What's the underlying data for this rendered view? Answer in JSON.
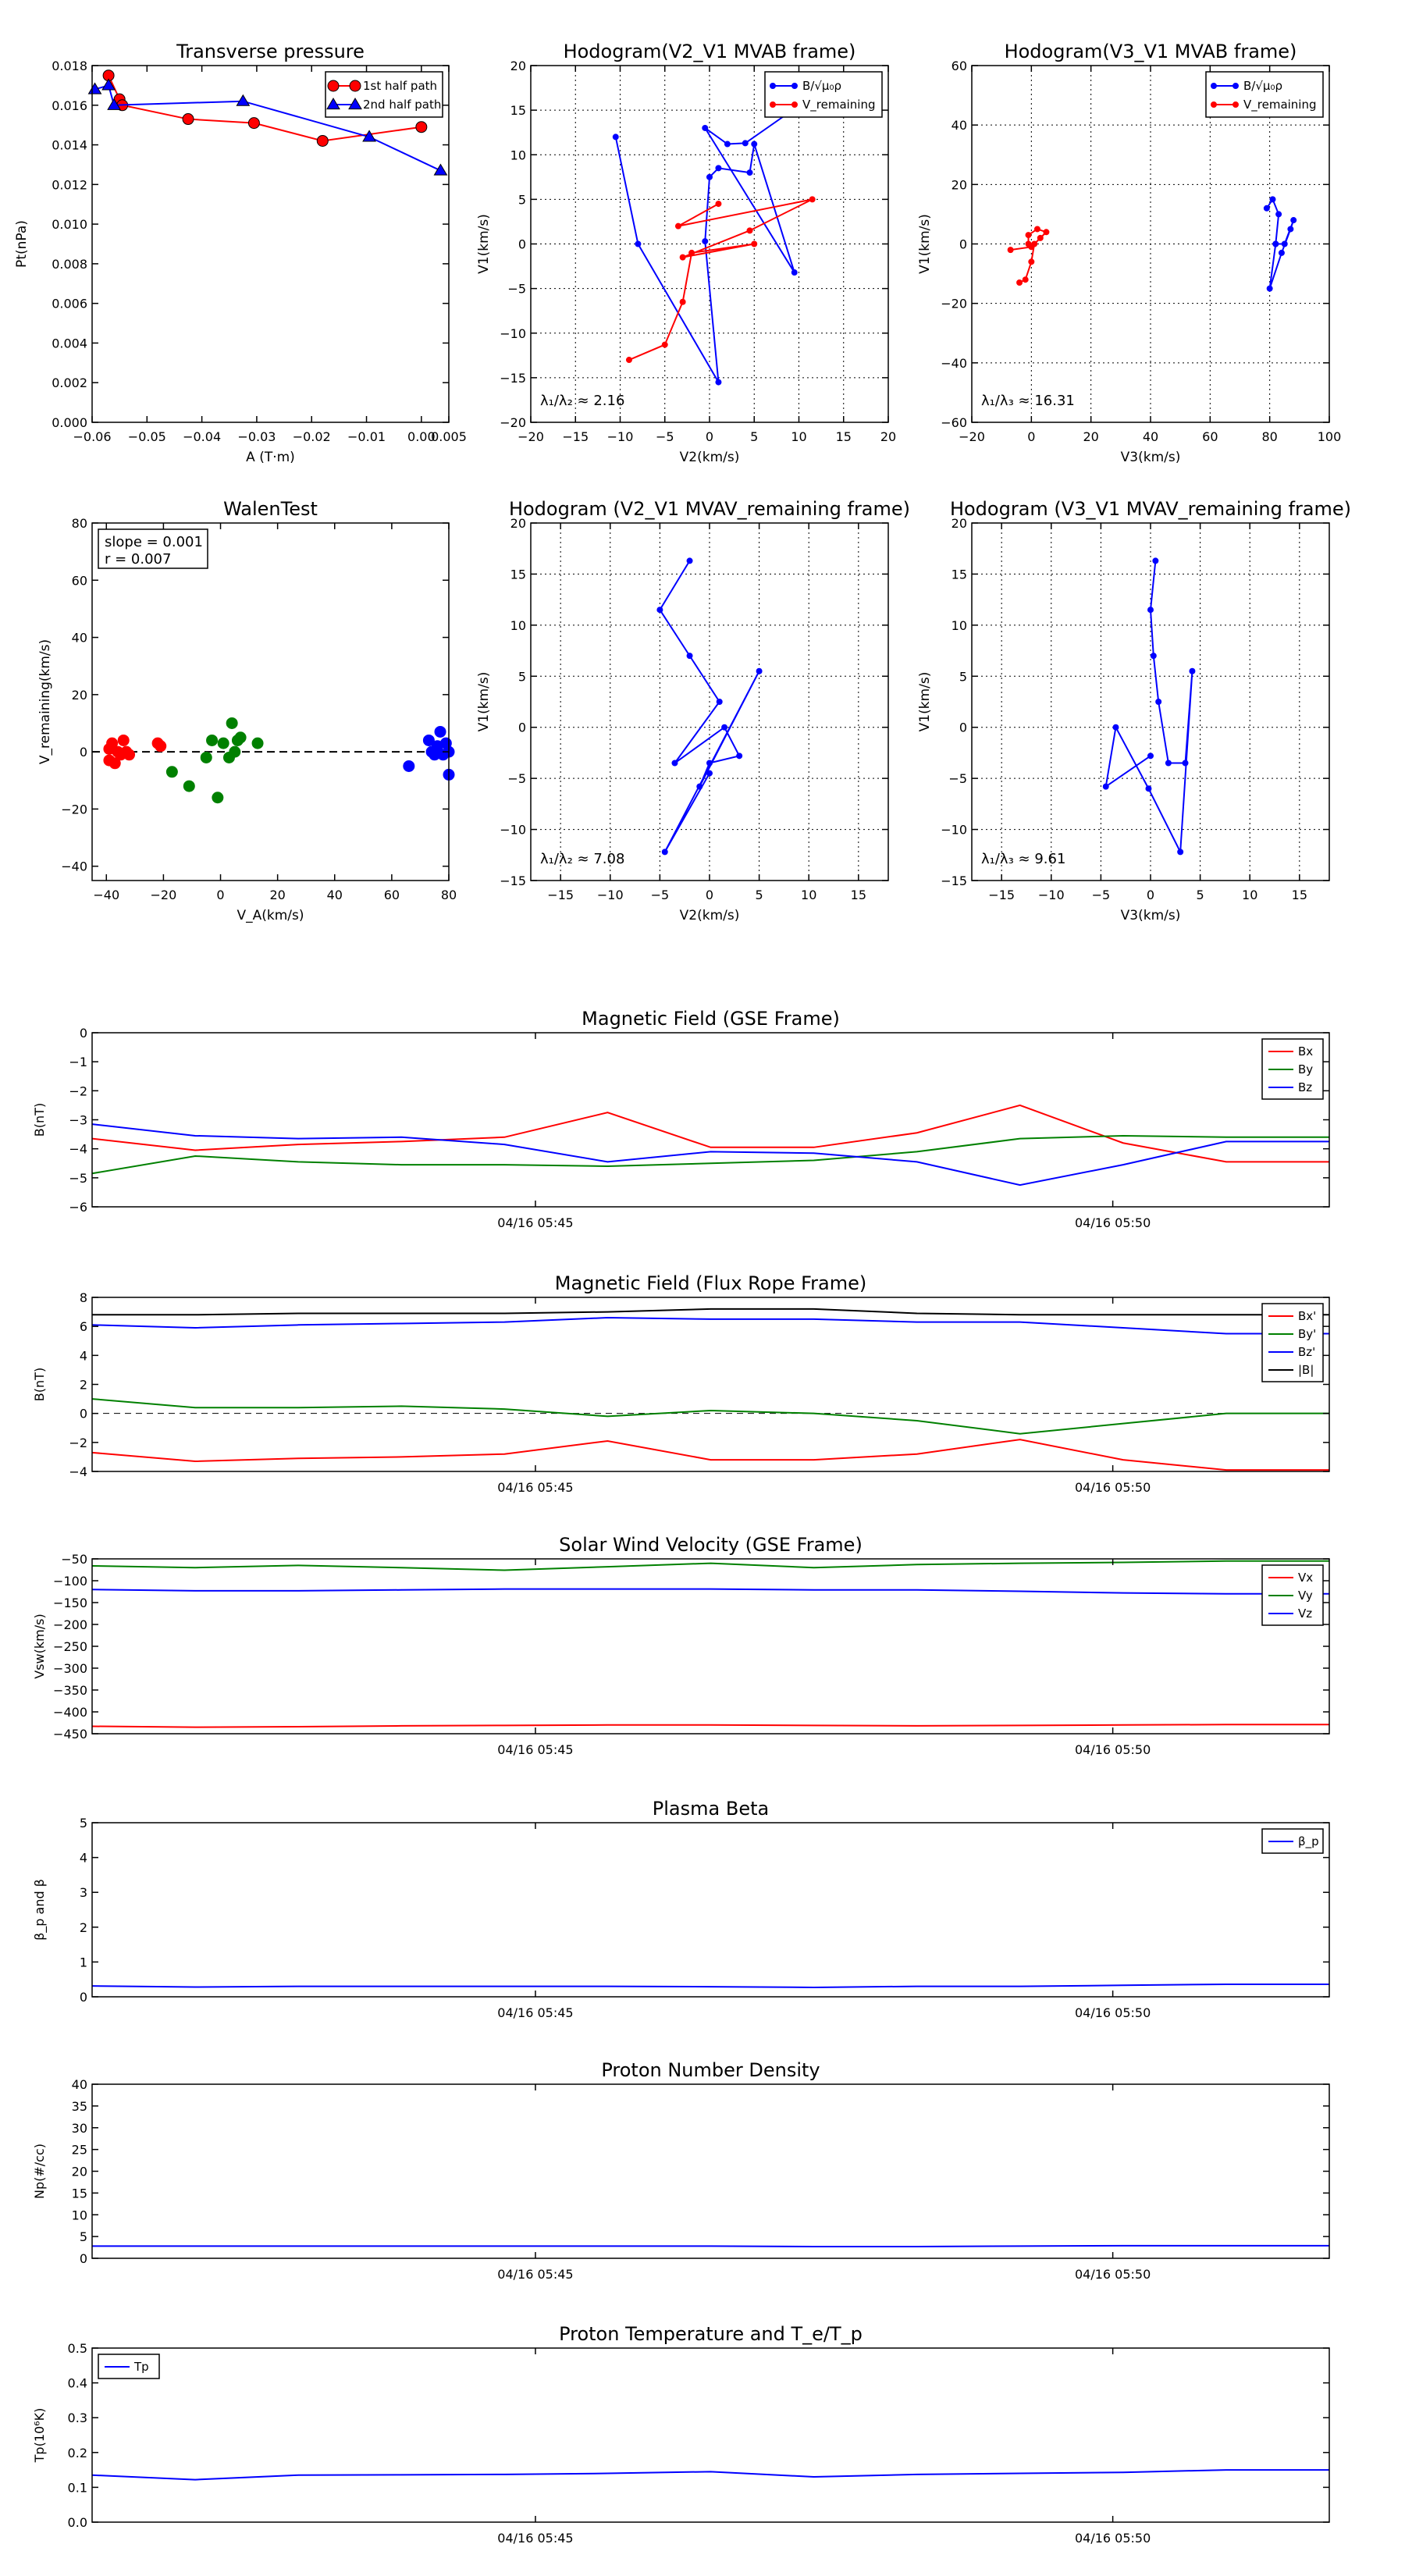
{
  "chart_data": [
    {
      "id": "tp",
      "type": "line",
      "title": "Transverse pressure",
      "xlabel": "A (T·m)",
      "ylabel": "Pt(nPa)",
      "xlim": [
        -0.06,
        0.005
      ],
      "ylim": [
        0,
        0.018
      ],
      "xticks": [
        -0.06,
        -0.05,
        -0.04,
        -0.03,
        -0.02,
        -0.01,
        0.0,
        0.005
      ],
      "xticklabels": [
        "−0.06",
        "−0.05",
        "−0.04",
        "−0.03",
        "−0.02",
        "−0.01",
        "0.00",
        "0.005"
      ],
      "yticks": [
        0,
        0.002,
        0.004,
        0.006,
        0.008,
        0.01,
        0.012,
        0.014,
        0.016,
        0.018
      ],
      "yticklabels": [
        "0.000",
        "0.002",
        "0.004",
        "0.006",
        "0.008",
        "0.010",
        "0.012",
        "0.014",
        "0.016",
        "0.018"
      ],
      "grid": false,
      "legend": "top-right",
      "series": [
        {
          "name": "1st half path",
          "color": "#ff0000",
          "marker": "circle",
          "x": [
            -0.057,
            -0.055,
            -0.0545,
            -0.0425,
            -0.0305,
            -0.018,
            0.0
          ],
          "y": [
            0.0175,
            0.0163,
            0.016,
            0.0153,
            0.0151,
            0.0142,
            0.0149
          ]
        },
        {
          "name": "2nd half path",
          "color": "#0000ff",
          "marker": "triangle",
          "x": [
            -0.0595,
            -0.057,
            -0.056,
            -0.0325,
            -0.0095,
            0.0035
          ],
          "y": [
            0.0168,
            0.017,
            0.016,
            0.0162,
            0.0144,
            0.0127
          ]
        }
      ]
    },
    {
      "id": "hodo1",
      "type": "line",
      "title": "Hodogram(V2_V1 MVAB frame)",
      "xlabel": "V2(km/s)",
      "ylabel": "V1(km/s)",
      "xlim": [
        -20,
        20
      ],
      "ylim": [
        -20,
        20
      ],
      "xticks": [
        -20,
        -15,
        -10,
        -5,
        0,
        5,
        10,
        15,
        20
      ],
      "yticks": [
        -20,
        -15,
        -10,
        -5,
        0,
        5,
        10,
        15,
        20
      ],
      "grid": true,
      "legend": "top-right",
      "annotation": "λ₁/λ₂ ≈ 2.16",
      "series": [
        {
          "name": "B/√μ₀ρ",
          "color": "#0000ff",
          "x": [
            -10.5,
            -8,
            1,
            -0.5,
            0,
            1,
            4.5,
            5,
            9.5,
            -0.5,
            2,
            4,
            10
          ],
          "y": [
            12,
            0,
            -15.5,
            0.3,
            7.5,
            8.5,
            8,
            11.2,
            -3.2,
            13,
            11.2,
            11.3,
            15.5
          ]
        },
        {
          "name": "V_remaining",
          "color": "#ff0000",
          "x": [
            -9,
            -5,
            -3,
            -2,
            5,
            -3,
            4.5,
            11.5,
            -3.5,
            1
          ],
          "y": [
            -13,
            -11.3,
            -6.5,
            -1,
            0,
            -1.5,
            1.5,
            5,
            2,
            4.5
          ]
        }
      ]
    },
    {
      "id": "hodo2",
      "type": "line",
      "title": "Hodogram(V3_V1 MVAB frame)",
      "xlabel": "V3(km/s)",
      "ylabel": "V1(km/s)",
      "xlim": [
        -20,
        100
      ],
      "ylim": [
        -60,
        60
      ],
      "xticks": [
        -20,
        0,
        20,
        40,
        60,
        80,
        100
      ],
      "yticks": [
        -60,
        -40,
        -20,
        0,
        20,
        40,
        60
      ],
      "grid": true,
      "legend": "top-right",
      "annotation": "λ₁/λ₃ ≈ 16.31",
      "series": [
        {
          "name": "B/√μ₀ρ",
          "color": "#0000ff",
          "x": [
            79,
            81,
            83,
            82,
            80,
            84,
            87,
            88,
            85,
            82
          ],
          "y": [
            12,
            15,
            10,
            0,
            -15,
            -3,
            5,
            8,
            0,
            0
          ]
        },
        {
          "name": "V_remaining",
          "color": "#ff0000",
          "x": [
            -4,
            -2,
            0,
            1,
            3,
            5,
            2,
            -1,
            -1,
            0,
            -7
          ],
          "y": [
            -13,
            -12,
            -6,
            0,
            2,
            4,
            5,
            3,
            0,
            -1,
            -2
          ]
        }
      ]
    },
    {
      "id": "walen",
      "type": "scatter",
      "title": "WalenTest",
      "xlabel": "V_A(km/s)",
      "ylabel": "V_remaining(km/s)",
      "xlim": [
        -45,
        80
      ],
      "ylim": [
        -45,
        80
      ],
      "xticks": [
        -40,
        -20,
        0,
        20,
        40,
        60,
        80
      ],
      "yticks": [
        -40,
        -20,
        0,
        20,
        40,
        60,
        80
      ],
      "grid": false,
      "annotation_lines": [
        "slope = 0.001",
        "r = 0.007"
      ],
      "series": [
        {
          "color": "#ff0000",
          "x": [
            -39,
            -38,
            -36,
            -35,
            -34,
            -33,
            -32,
            -22,
            -21,
            -37,
            -39
          ],
          "y": [
            1,
            3,
            0,
            -1,
            4,
            0,
            -1,
            3,
            2,
            -4,
            -3
          ]
        },
        {
          "color": "#008000",
          "x": [
            -17,
            -11,
            -5,
            -3,
            -1,
            1,
            3,
            4,
            5,
            6,
            7,
            13
          ],
          "y": [
            -7,
            -12,
            -2,
            4,
            -16,
            3,
            -2,
            10,
            0,
            4,
            5,
            3
          ]
        },
        {
          "color": "#0000ff",
          "x": [
            66,
            73,
            74,
            75,
            76,
            77,
            78,
            79,
            80,
            80,
            76
          ],
          "y": [
            -5,
            4,
            0,
            -1,
            2,
            7,
            -1,
            3,
            -8,
            0,
            0
          ]
        }
      ],
      "refline": {
        "x": [
          -45,
          80
        ],
        "y": [
          0,
          0
        ]
      }
    },
    {
      "id": "hodo3",
      "type": "line",
      "title": "Hodogram (V2_V1 MVAV_remaining frame)",
      "xlabel": "V2(km/s)",
      "ylabel": "V1(km/s)",
      "xlim": [
        -18,
        18
      ],
      "ylim": [
        -15,
        20
      ],
      "xticks": [
        -15,
        -10,
        -5,
        0,
        5,
        10,
        15
      ],
      "yticks": [
        -15,
        -10,
        -5,
        0,
        5,
        10,
        15,
        20
      ],
      "grid": true,
      "annotation": "λ₁/λ₂ ≈ 7.08",
      "series": [
        {
          "color": "#0000ff",
          "x": [
            -2,
            -5,
            -2,
            1,
            -3.5,
            1.5,
            3,
            0,
            -1,
            5,
            -4.5,
            0
          ],
          "y": [
            16.3,
            11.5,
            7,
            2.5,
            -3.5,
            0,
            -2.8,
            -3.5,
            -5.8,
            5.5,
            -12.2,
            -4.5
          ]
        }
      ]
    },
    {
      "id": "hodo4",
      "type": "line",
      "title": "Hodogram (V3_V1 MVAV_remaining frame)",
      "xlabel": "V3(km/s)",
      "ylabel": "V1(km/s)",
      "xlim": [
        -18,
        18
      ],
      "ylim": [
        -15,
        20
      ],
      "xticks": [
        -15,
        -10,
        -5,
        0,
        5,
        10,
        15
      ],
      "yticks": [
        -15,
        -10,
        -5,
        0,
        5,
        10,
        15,
        20
      ],
      "grid": true,
      "annotation": "λ₁/λ₃ ≈ 9.61",
      "series": [
        {
          "color": "#0000ff",
          "x": [
            0.5,
            0,
            0.3,
            0.8,
            1.8,
            3.5,
            4.2,
            3,
            -0.2,
            -3.5,
            -4.5,
            0
          ],
          "y": [
            16.3,
            11.5,
            7,
            2.5,
            -3.5,
            -3.5,
            5.5,
            -12.2,
            -6,
            0,
            -5.8,
            -2.8
          ]
        }
      ]
    },
    {
      "id": "bgse",
      "type": "line",
      "title": "Magnetic Field (GSE Frame)",
      "ylabel": "B(nT)",
      "x": [
        0,
        1,
        2,
        3,
        4,
        5,
        6,
        7,
        8,
        9,
        10,
        11,
        12
      ],
      "xlim": [
        0,
        12
      ],
      "ylim": [
        -6,
        0
      ],
      "yticks": [
        -6,
        -5,
        -4,
        -3,
        -2,
        -1,
        0
      ],
      "time_ticks": [
        {
          "x": 4.3,
          "label": "04/16 05:45"
        },
        {
          "x": 9.9,
          "label": "04/16 05:50"
        }
      ],
      "legend": "top-right",
      "series": [
        {
          "name": "Bx",
          "color": "#ff0000",
          "values": [
            -3.65,
            -4.05,
            -3.85,
            -3.75,
            -3.6,
            -2.75,
            -3.95,
            -3.95,
            -3.45,
            -2.5,
            -3.8,
            -4.45,
            -4.45
          ]
        },
        {
          "name": "By",
          "color": "#008000",
          "values": [
            -4.85,
            -4.25,
            -4.45,
            -4.55,
            -4.55,
            -4.6,
            -4.5,
            -4.4,
            -4.1,
            -3.65,
            -3.55,
            -3.6,
            -3.6
          ]
        },
        {
          "name": "Bz",
          "color": "#0000ff",
          "values": [
            -3.15,
            -3.55,
            -3.65,
            -3.6,
            -3.85,
            -4.45,
            -4.1,
            -4.15,
            -4.45,
            -5.25,
            -4.55,
            -3.75,
            -3.75
          ]
        }
      ]
    },
    {
      "id": "bfr",
      "type": "line",
      "title": "Magnetic Field (Flux Rope Frame)",
      "ylabel": "B(nT)",
      "x": [
        0,
        1,
        2,
        3,
        4,
        5,
        6,
        7,
        8,
        9,
        10,
        11,
        12
      ],
      "xlim": [
        0,
        12
      ],
      "ylim": [
        -4,
        8
      ],
      "yticks": [
        -4,
        -2,
        0,
        2,
        4,
        6,
        8
      ],
      "time_ticks": [
        {
          "x": 4.3,
          "label": "04/16 05:45"
        },
        {
          "x": 9.9,
          "label": "04/16 05:50"
        }
      ],
      "legend": "top-right",
      "zero_line": true,
      "series": [
        {
          "name": "Bx'",
          "color": "#ff0000",
          "values": [
            -2.7,
            -3.3,
            -3.1,
            -3.0,
            -2.8,
            -1.9,
            -3.2,
            -3.2,
            -2.8,
            -1.8,
            -3.2,
            -3.9,
            -3.9
          ]
        },
        {
          "name": "By'",
          "color": "#008000",
          "values": [
            1.0,
            0.4,
            0.4,
            0.5,
            0.3,
            -0.2,
            0.2,
            0.0,
            -0.5,
            -1.4,
            -0.7,
            0.0,
            0.0
          ]
        },
        {
          "name": "Bz'",
          "color": "#0000ff",
          "values": [
            6.1,
            5.9,
            6.1,
            6.2,
            6.3,
            6.6,
            6.5,
            6.5,
            6.3,
            6.3,
            5.9,
            5.5,
            5.5
          ]
        },
        {
          "name": "|B|",
          "color": "#000000",
          "values": [
            6.8,
            6.8,
            6.9,
            6.9,
            6.9,
            7.0,
            7.2,
            7.2,
            6.9,
            6.8,
            6.8,
            6.8,
            6.8
          ]
        }
      ]
    },
    {
      "id": "vsw",
      "type": "line",
      "title": "Solar Wind Velocity (GSE Frame)",
      "ylabel": "Vsw(km/s)",
      "x": [
        0,
        1,
        2,
        3,
        4,
        5,
        6,
        7,
        8,
        9,
        10,
        11,
        12
      ],
      "xlim": [
        0,
        12
      ],
      "ylim": [
        -450,
        -50
      ],
      "yticks": [
        -450,
        -400,
        -350,
        -300,
        -250,
        -200,
        -150,
        -100,
        -50
      ],
      "time_ticks": [
        {
          "x": 4.3,
          "label": "04/16 05:45"
        },
        {
          "x": 9.9,
          "label": "04/16 05:50"
        }
      ],
      "legend": "top-right",
      "series": [
        {
          "name": "Vx",
          "color": "#ff0000",
          "values": [
            -433,
            -435,
            -434,
            -432,
            -431,
            -430,
            -430,
            -431,
            -432,
            -431,
            -430,
            -429,
            -429
          ]
        },
        {
          "name": "Vy",
          "color": "#008000",
          "values": [
            -66,
            -70,
            -65,
            -70,
            -76,
            -68,
            -60,
            -70,
            -63,
            -60,
            -58,
            -55,
            -55
          ]
        },
        {
          "name": "Vz",
          "color": "#0000ff",
          "values": [
            -120,
            -123,
            -123,
            -121,
            -119,
            -119,
            -119,
            -121,
            -121,
            -124,
            -128,
            -130,
            -130
          ]
        }
      ]
    },
    {
      "id": "beta",
      "type": "line",
      "title": "Plasma Beta",
      "ylabel": "β_p and β",
      "x": [
        0,
        1,
        2,
        3,
        4,
        5,
        6,
        7,
        8,
        9,
        10,
        11,
        12
      ],
      "xlim": [
        0,
        12
      ],
      "ylim": [
        0,
        5
      ],
      "yticks": [
        0,
        1,
        2,
        3,
        4,
        5
      ],
      "time_ticks": [
        {
          "x": 4.3,
          "label": "04/16 05:45"
        },
        {
          "x": 9.9,
          "label": "04/16 05:50"
        }
      ],
      "legend": "top-right",
      "series": [
        {
          "name": "β_p",
          "color": "#0000ff",
          "values": [
            0.31,
            0.28,
            0.3,
            0.3,
            0.3,
            0.3,
            0.29,
            0.27,
            0.3,
            0.3,
            0.33,
            0.36,
            0.36
          ]
        }
      ]
    },
    {
      "id": "np",
      "type": "line",
      "title": "Proton Number Density",
      "ylabel": "Np(#/cc)",
      "x": [
        0,
        1,
        2,
        3,
        4,
        5,
        6,
        7,
        8,
        9,
        10,
        11,
        12
      ],
      "xlim": [
        0,
        12
      ],
      "ylim": [
        0,
        40
      ],
      "yticks": [
        0,
        5,
        10,
        15,
        20,
        25,
        30,
        35,
        40
      ],
      "time_ticks": [
        {
          "x": 4.3,
          "label": "04/16 05:45"
        },
        {
          "x": 9.9,
          "label": "04/16 05:50"
        }
      ],
      "series": [
        {
          "color": "#0000ff",
          "values": [
            2.8,
            2.8,
            2.8,
            2.8,
            2.8,
            2.8,
            2.8,
            2.7,
            2.7,
            2.8,
            2.9,
            2.9,
            2.9
          ]
        }
      ]
    },
    {
      "id": "tp2",
      "type": "line",
      "title": "Proton Temperature and T_e/T_p",
      "ylabel": "Tp(10⁶K)",
      "x": [
        0,
        1,
        2,
        3,
        4,
        5,
        6,
        7,
        8,
        9,
        10,
        11,
        12
      ],
      "xlim": [
        0,
        12
      ],
      "ylim": [
        0,
        0.5
      ],
      "yticks": [
        0,
        0.1,
        0.2,
        0.3,
        0.4,
        0.5
      ],
      "yticklabels": [
        "0.0",
        "0.1",
        "0.2",
        "0.3",
        "0.4",
        "0.5"
      ],
      "time_ticks": [
        {
          "x": 4.3,
          "label": "04/16 05:45"
        },
        {
          "x": 9.9,
          "label": "04/16 05:50"
        }
      ],
      "legend": "top-left",
      "series": [
        {
          "name": "Tp",
          "color": "#0000ff",
          "values": [
            0.135,
            0.122,
            0.135,
            0.136,
            0.137,
            0.14,
            0.145,
            0.13,
            0.137,
            0.14,
            0.143,
            0.15,
            0.15
          ]
        }
      ]
    }
  ]
}
